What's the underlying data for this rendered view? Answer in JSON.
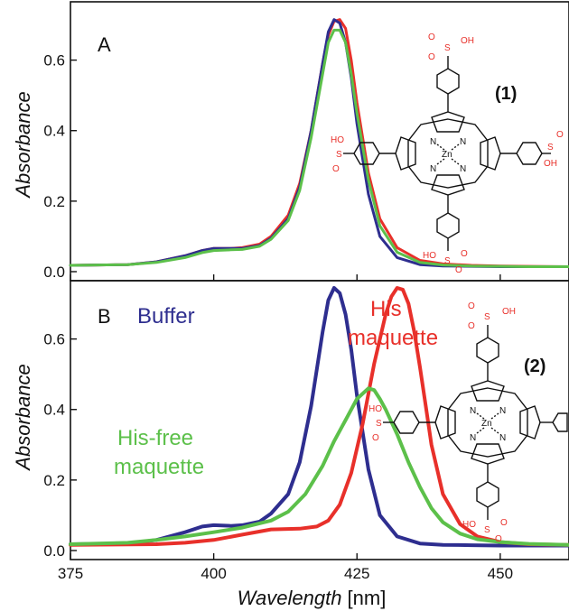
{
  "colors": {
    "buffer": "#2e2e8f",
    "his": "#e8302a",
    "hisfree": "#5cc04a",
    "sulfo": "#e8302a",
    "ink": "#111111"
  },
  "chart_data": [
    {
      "type": "line",
      "panel_label": "A",
      "ylabel": "Absorbance",
      "xlim": [
        375,
        462
      ],
      "ylim": [
        0.0,
        0.75
      ],
      "yticks": [
        0.0,
        0.2,
        0.4,
        0.6
      ],
      "ytick_labels": [
        "0.0",
        "0.2",
        "0.4",
        "0.6"
      ],
      "grid": false,
      "series": [
        {
          "color": "#e8302a",
          "x": [
            375,
            385,
            390,
            395,
            398,
            400,
            403,
            405,
            408,
            410,
            413,
            415,
            417,
            419,
            420,
            421,
            422,
            423,
            424,
            425,
            427,
            429,
            432,
            436,
            440,
            445,
            450,
            455,
            462
          ],
          "y": [
            0.018,
            0.02,
            0.028,
            0.045,
            0.06,
            0.066,
            0.066,
            0.068,
            0.078,
            0.1,
            0.16,
            0.25,
            0.4,
            0.59,
            0.67,
            0.71,
            0.715,
            0.69,
            0.6,
            0.48,
            0.28,
            0.15,
            0.068,
            0.032,
            0.022,
            0.018,
            0.016,
            0.015,
            0.014
          ]
        },
        {
          "color": "#2e2e8f",
          "x": [
            375,
            385,
            390,
            395,
            398,
            400,
            403,
            405,
            408,
            410,
            413,
            415,
            417,
            419,
            420,
            421,
            422,
            423,
            424,
            425,
            427,
            429,
            432,
            436,
            440,
            445,
            450,
            455,
            462
          ],
          "y": [
            0.018,
            0.02,
            0.028,
            0.045,
            0.06,
            0.066,
            0.066,
            0.066,
            0.074,
            0.095,
            0.15,
            0.24,
            0.4,
            0.59,
            0.68,
            0.715,
            0.705,
            0.65,
            0.55,
            0.42,
            0.22,
            0.1,
            0.04,
            0.02,
            0.016,
            0.015,
            0.014,
            0.014,
            0.014
          ]
        },
        {
          "color": "#5cc04a",
          "x": [
            375,
            385,
            390,
            395,
            398,
            400,
            403,
            405,
            408,
            410,
            413,
            415,
            417,
            419,
            420,
            421,
            422,
            423,
            424,
            425,
            427,
            429,
            432,
            436,
            440,
            445,
            450,
            455,
            462
          ],
          "y": [
            0.018,
            0.02,
            0.026,
            0.04,
            0.054,
            0.06,
            0.062,
            0.063,
            0.072,
            0.092,
            0.145,
            0.23,
            0.38,
            0.56,
            0.65,
            0.685,
            0.685,
            0.65,
            0.56,
            0.45,
            0.26,
            0.13,
            0.055,
            0.026,
            0.019,
            0.016,
            0.015,
            0.014,
            0.014
          ]
        }
      ]
    },
    {
      "type": "line",
      "panel_label": "B",
      "xlabel_main": "Wavelength",
      "xlabel_unit": " [nm]",
      "ylabel": "Absorbance",
      "xlim": [
        375,
        462
      ],
      "ylim": [
        0.0,
        0.75
      ],
      "xticks": [
        375,
        400,
        425,
        450
      ],
      "xtick_labels": [
        "375",
        "400",
        "425",
        "450"
      ],
      "yticks": [
        0.0,
        0.2,
        0.4,
        0.6
      ],
      "ytick_labels": [
        "0.0",
        "0.2",
        "0.4",
        "0.6"
      ],
      "grid": false,
      "series": [
        {
          "name": "Buffer",
          "color": "#2e2e8f",
          "x": [
            375,
            385,
            390,
            395,
            398,
            400,
            403,
            405,
            408,
            410,
            413,
            415,
            417,
            419,
            420,
            421,
            422,
            423,
            424,
            425,
            427,
            429,
            432,
            436,
            440,
            445,
            450,
            455,
            462
          ],
          "y": [
            0.018,
            0.02,
            0.03,
            0.052,
            0.068,
            0.072,
            0.07,
            0.072,
            0.082,
            0.105,
            0.16,
            0.25,
            0.41,
            0.62,
            0.71,
            0.745,
            0.73,
            0.67,
            0.57,
            0.44,
            0.23,
            0.1,
            0.04,
            0.02,
            0.016,
            0.015,
            0.014,
            0.014,
            0.014
          ]
        },
        {
          "name": "His maquette",
          "color": "#e8302a",
          "x": [
            375,
            390,
            395,
            400,
            405,
            410,
            415,
            418,
            420,
            422,
            424,
            426,
            428,
            430,
            431,
            432,
            433,
            434,
            435,
            436,
            437,
            438,
            440,
            443,
            446,
            450,
            455,
            462
          ],
          "y": [
            0.016,
            0.018,
            0.022,
            0.03,
            0.045,
            0.06,
            0.062,
            0.068,
            0.085,
            0.13,
            0.22,
            0.36,
            0.53,
            0.67,
            0.72,
            0.745,
            0.74,
            0.7,
            0.62,
            0.52,
            0.41,
            0.3,
            0.16,
            0.075,
            0.04,
            0.024,
            0.018,
            0.016
          ]
        },
        {
          "name": "His-free maquette",
          "color": "#5cc04a",
          "x": [
            375,
            385,
            390,
            395,
            400,
            405,
            410,
            413,
            416,
            419,
            421,
            423,
            425,
            427,
            428,
            429,
            430,
            432,
            434,
            436,
            438,
            440,
            443,
            446,
            450,
            455,
            462
          ],
          "y": [
            0.018,
            0.022,
            0.03,
            0.04,
            0.052,
            0.065,
            0.085,
            0.11,
            0.16,
            0.24,
            0.31,
            0.37,
            0.43,
            0.46,
            0.455,
            0.43,
            0.4,
            0.33,
            0.25,
            0.18,
            0.12,
            0.08,
            0.048,
            0.032,
            0.024,
            0.019,
            0.016
          ]
        }
      ]
    }
  ],
  "annotations": {
    "buffer": "Buffer",
    "his_line1": "His",
    "his_line2": "maquette",
    "hisfree_line1": "His-free",
    "hisfree_line2": "maquette"
  },
  "structures": {
    "compound1_id": "(1)",
    "compound2_id": "(2)",
    "metal": "Zn",
    "nitrogen": "N",
    "sulfo_s": "S",
    "sulfo_oh": "OH",
    "sulfo_ho": "HO",
    "sulfo_o": "O"
  }
}
